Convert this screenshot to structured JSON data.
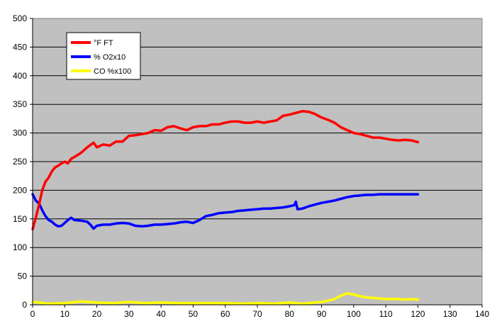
{
  "chart_data": {
    "type": "line",
    "title": "",
    "xlabel": "",
    "ylabel": "",
    "xlim": [
      0,
      140
    ],
    "ylim": [
      0,
      500
    ],
    "xticks": [
      0,
      10,
      20,
      30,
      40,
      50,
      60,
      70,
      80,
      90,
      100,
      110,
      120,
      130,
      140
    ],
    "yticks": [
      0,
      50,
      100,
      150,
      200,
      250,
      300,
      350,
      400,
      450,
      500
    ],
    "grid": "horizontal",
    "plot_background": "#c0c0c0",
    "legend": {
      "placement": "top-left"
    },
    "series": [
      {
        "name": "°F FT",
        "color": "#ff0000",
        "x": [
          0,
          1,
          2,
          3,
          4,
          5,
          6,
          7,
          8,
          9,
          10,
          11,
          12,
          13,
          15,
          17,
          19,
          20,
          22,
          24,
          26,
          28,
          30,
          32,
          34,
          36,
          38,
          40,
          42,
          44,
          46,
          48,
          50,
          52,
          54,
          56,
          58,
          60,
          62,
          64,
          66,
          68,
          70,
          72,
          74,
          76,
          78,
          80,
          82,
          84,
          86,
          88,
          90,
          92,
          94,
          96,
          98,
          100,
          102,
          104,
          106,
          108,
          110,
          112,
          114,
          116,
          118,
          120
        ],
        "values": [
          132,
          152,
          175,
          200,
          215,
          222,
          233,
          240,
          243,
          247,
          250,
          247,
          255,
          258,
          265,
          275,
          283,
          275,
          280,
          278,
          285,
          285,
          295,
          296,
          298,
          300,
          305,
          304,
          310,
          312,
          308,
          305,
          310,
          312,
          312,
          315,
          315,
          318,
          320,
          320,
          318,
          318,
          320,
          318,
          320,
          322,
          330,
          332,
          335,
          338,
          337,
          333,
          327,
          323,
          318,
          310,
          305,
          300,
          298,
          295,
          292,
          292,
          290,
          288,
          287,
          288,
          287,
          284
        ]
      },
      {
        "name": "% O2x10",
        "color": "#0000ff",
        "x": [
          0,
          1,
          2,
          3,
          4,
          5,
          6,
          7,
          8,
          9,
          10,
          11,
          12,
          13,
          15,
          17,
          18,
          19,
          20,
          22,
          24,
          26,
          28,
          30,
          32,
          34,
          36,
          38,
          40,
          42,
          44,
          46,
          48,
          50,
          52,
          54,
          56,
          58,
          60,
          62,
          64,
          66,
          68,
          70,
          72,
          74,
          76,
          78,
          80,
          81.5,
          82,
          82.5,
          84,
          86,
          88,
          90,
          92,
          94,
          96,
          98,
          100,
          102,
          104,
          106,
          108,
          110,
          112,
          114,
          116,
          118,
          120
        ],
        "values": [
          193,
          182,
          177,
          165,
          155,
          148,
          145,
          140,
          137,
          138,
          143,
          148,
          152,
          148,
          147,
          145,
          140,
          133,
          138,
          140,
          140,
          142,
          143,
          142,
          138,
          137,
          138,
          140,
          140,
          141,
          142,
          144,
          145,
          143,
          148,
          155,
          157,
          160,
          161,
          162,
          164,
          165,
          166,
          167,
          168,
          168,
          169,
          170,
          172,
          174,
          180,
          167,
          168,
          172,
          175,
          178,
          180,
          182,
          185,
          188,
          190,
          191,
          192,
          192,
          193,
          193,
          193,
          193,
          193,
          193,
          193
        ]
      },
      {
        "name": "CO %x100",
        "color": "#ffff00",
        "x": [
          0,
          2,
          5,
          10,
          15,
          20,
          25,
          30,
          35,
          40,
          45,
          50,
          55,
          60,
          65,
          70,
          75,
          80,
          82,
          84,
          86,
          88,
          90,
          92,
          94,
          96,
          98,
          100,
          102,
          104,
          106,
          108,
          110,
          112,
          114,
          116,
          118,
          120
        ],
        "values": [
          5,
          4,
          2,
          3,
          6,
          4,
          3,
          5,
          3,
          4,
          3,
          3,
          3,
          3,
          2,
          3,
          2,
          4,
          3,
          2,
          3,
          4,
          5,
          7,
          10,
          16,
          20,
          18,
          15,
          13,
          12,
          11,
          10,
          10,
          10,
          9,
          10,
          9
        ]
      }
    ]
  }
}
